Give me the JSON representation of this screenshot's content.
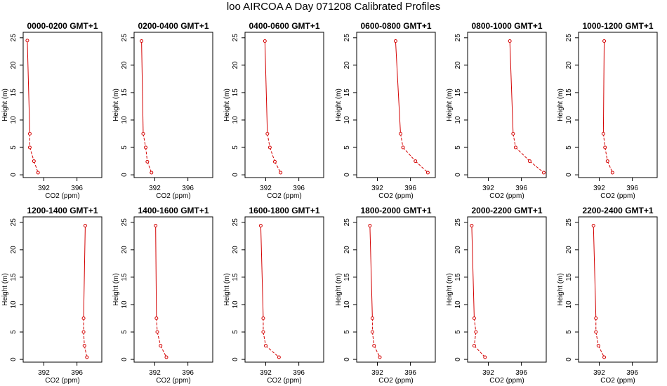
{
  "figure": {
    "title": "loo AIRCOA A  Day 071208  Calibrated Profiles"
  },
  "colors": {
    "series": "#d40000",
    "axis": "#000000"
  },
  "chart_data": [
    {
      "type": "line",
      "title": "0000-0200 GMT+1",
      "xlabel": "CO2 (ppm)",
      "ylabel": "Height (m)",
      "xlim": [
        389.5,
        399.0
      ],
      "ylim": [
        -0.5,
        26
      ],
      "xticks": [
        392,
        396
      ],
      "yticks": [
        0,
        5,
        10,
        15,
        20,
        25
      ],
      "grid": false,
      "points": [
        {
          "x": 390.0,
          "y": 24.5
        },
        {
          "x": 390.3,
          "y": 7.5
        },
        {
          "x": 390.3,
          "y": 5.0
        },
        {
          "x": 390.8,
          "y": 2.5
        },
        {
          "x": 391.3,
          "y": 0.4
        }
      ]
    },
    {
      "type": "line",
      "title": "0200-0400 GMT+1",
      "xlabel": "CO2 (ppm)",
      "ylabel": "Height (m)",
      "xlim": [
        389.5,
        399.0
      ],
      "ylim": [
        -0.5,
        26
      ],
      "xticks": [
        392,
        396
      ],
      "yticks": [
        0,
        5,
        10,
        15,
        20,
        25
      ],
      "grid": false,
      "points": [
        {
          "x": 390.4,
          "y": 24.4
        },
        {
          "x": 390.6,
          "y": 7.5
        },
        {
          "x": 390.9,
          "y": 5.0
        },
        {
          "x": 391.1,
          "y": 2.4
        },
        {
          "x": 391.6,
          "y": 0.4
        }
      ]
    },
    {
      "type": "line",
      "title": "0400-0600 GMT+1",
      "xlabel": "CO2 (ppm)",
      "ylabel": "Height (m)",
      "xlim": [
        389.5,
        399.0
      ],
      "ylim": [
        -0.5,
        26
      ],
      "xticks": [
        392,
        396
      ],
      "yticks": [
        0,
        5,
        10,
        15,
        20,
        25
      ],
      "grid": false,
      "points": [
        {
          "x": 391.9,
          "y": 24.4
        },
        {
          "x": 392.2,
          "y": 7.5
        },
        {
          "x": 392.5,
          "y": 5.0
        },
        {
          "x": 393.1,
          "y": 2.4
        },
        {
          "x": 393.8,
          "y": 0.4
        }
      ]
    },
    {
      "type": "line",
      "title": "0600-0800 GMT+1",
      "xlabel": "CO2 (ppm)",
      "ylabel": "Height (m)",
      "xlim": [
        389.5,
        399.0
      ],
      "ylim": [
        -0.5,
        26
      ],
      "xticks": [
        392,
        396
      ],
      "yticks": [
        0,
        5,
        10,
        15,
        20,
        25
      ],
      "grid": false,
      "points": [
        {
          "x": 394.2,
          "y": 24.4
        },
        {
          "x": 394.8,
          "y": 7.5
        },
        {
          "x": 395.1,
          "y": 5.0
        },
        {
          "x": 396.6,
          "y": 2.5
        },
        {
          "x": 398.1,
          "y": 0.4
        }
      ]
    },
    {
      "type": "line",
      "title": "0800-1000 GMT+1",
      "xlabel": "CO2 (ppm)",
      "ylabel": "Height (m)",
      "xlim": [
        389.5,
        399.0
      ],
      "ylim": [
        -0.5,
        26
      ],
      "xticks": [
        392,
        396
      ],
      "yticks": [
        0,
        5,
        10,
        15,
        20,
        25
      ],
      "grid": false,
      "points": [
        {
          "x": 394.6,
          "y": 24.4
        },
        {
          "x": 395.0,
          "y": 7.5
        },
        {
          "x": 395.3,
          "y": 5.0
        },
        {
          "x": 397.0,
          "y": 2.5
        },
        {
          "x": 398.7,
          "y": 0.4
        }
      ]
    },
    {
      "type": "line",
      "title": "1000-1200 GMT+1",
      "xlabel": "CO2 (ppm)",
      "ylabel": "Height (m)",
      "xlim": [
        389.5,
        399.0
      ],
      "ylim": [
        -0.5,
        26
      ],
      "xticks": [
        392,
        396
      ],
      "yticks": [
        0,
        5,
        10,
        15,
        20,
        25
      ],
      "grid": false,
      "points": [
        {
          "x": 392.6,
          "y": 24.4
        },
        {
          "x": 392.5,
          "y": 7.5
        },
        {
          "x": 392.7,
          "y": 5.0
        },
        {
          "x": 393.0,
          "y": 2.5
        },
        {
          "x": 393.6,
          "y": 0.4
        }
      ]
    },
    {
      "type": "line",
      "title": "1200-1400 GMT+1",
      "xlabel": "CO2 (ppm)",
      "ylabel": "Height (m)",
      "xlim": [
        389.5,
        399.0
      ],
      "ylim": [
        -0.5,
        26
      ],
      "xticks": [
        392,
        396
      ],
      "yticks": [
        0,
        5,
        10,
        15,
        20,
        25
      ],
      "grid": false,
      "points": [
        {
          "x": 397.0,
          "y": 24.4
        },
        {
          "x": 396.8,
          "y": 7.5
        },
        {
          "x": 396.8,
          "y": 5.0
        },
        {
          "x": 396.9,
          "y": 2.5
        },
        {
          "x": 397.2,
          "y": 0.4
        }
      ]
    },
    {
      "type": "line",
      "title": "1400-1600 GMT+1",
      "xlabel": "CO2 (ppm)",
      "ylabel": "Height (m)",
      "xlim": [
        389.5,
        399.0
      ],
      "ylim": [
        -0.5,
        26
      ],
      "xticks": [
        392,
        396
      ],
      "yticks": [
        0,
        5,
        10,
        15,
        20,
        25
      ],
      "grid": false,
      "points": [
        {
          "x": 392.1,
          "y": 24.4
        },
        {
          "x": 392.2,
          "y": 7.5
        },
        {
          "x": 392.3,
          "y": 5.0
        },
        {
          "x": 392.7,
          "y": 2.5
        },
        {
          "x": 393.4,
          "y": 0.4
        }
      ]
    },
    {
      "type": "line",
      "title": "1600-1800 GMT+1",
      "xlabel": "CO2 (ppm)",
      "ylabel": "Height (m)",
      "xlim": [
        389.5,
        399.0
      ],
      "ylim": [
        -0.5,
        26
      ],
      "xticks": [
        392,
        396
      ],
      "yticks": [
        0,
        5,
        10,
        15,
        20,
        25
      ],
      "grid": false,
      "points": [
        {
          "x": 391.4,
          "y": 24.4
        },
        {
          "x": 391.7,
          "y": 7.5
        },
        {
          "x": 391.7,
          "y": 5.0
        },
        {
          "x": 392.0,
          "y": 2.5
        },
        {
          "x": 393.6,
          "y": 0.4
        }
      ]
    },
    {
      "type": "line",
      "title": "1800-2000 GMT+1",
      "xlabel": "CO2 (ppm)",
      "ylabel": "Height (m)",
      "xlim": [
        389.5,
        399.0
      ],
      "ylim": [
        -0.5,
        26
      ],
      "xticks": [
        392,
        396
      ],
      "yticks": [
        0,
        5,
        10,
        15,
        20,
        25
      ],
      "grid": false,
      "points": [
        {
          "x": 391.1,
          "y": 24.4
        },
        {
          "x": 391.4,
          "y": 7.5
        },
        {
          "x": 391.4,
          "y": 5.0
        },
        {
          "x": 391.6,
          "y": 2.5
        },
        {
          "x": 392.3,
          "y": 0.4
        }
      ]
    },
    {
      "type": "line",
      "title": "2000-2200 GMT+1",
      "xlabel": "CO2 (ppm)",
      "ylabel": "Height (m)",
      "xlim": [
        389.5,
        399.0
      ],
      "ylim": [
        -0.5,
        26
      ],
      "xticks": [
        392,
        396
      ],
      "yticks": [
        0,
        5,
        10,
        15,
        20,
        25
      ],
      "grid": false,
      "points": [
        {
          "x": 390.0,
          "y": 24.4
        },
        {
          "x": 390.3,
          "y": 7.5
        },
        {
          "x": 390.5,
          "y": 5.0
        },
        {
          "x": 390.3,
          "y": 2.5
        },
        {
          "x": 391.6,
          "y": 0.4
        }
      ]
    },
    {
      "type": "line",
      "title": "2200-2400 GMT+1",
      "xlabel": "CO2 (ppm)",
      "ylabel": "Height (m)",
      "xlim": [
        389.5,
        399.0
      ],
      "ylim": [
        -0.5,
        26
      ],
      "xticks": [
        392,
        396
      ],
      "yticks": [
        0,
        5,
        10,
        15,
        20,
        25
      ],
      "grid": false,
      "points": [
        {
          "x": 391.3,
          "y": 24.4
        },
        {
          "x": 391.6,
          "y": 7.5
        },
        {
          "x": 391.6,
          "y": 5.0
        },
        {
          "x": 391.9,
          "y": 2.5
        },
        {
          "x": 392.6,
          "y": 0.4
        }
      ]
    }
  ]
}
